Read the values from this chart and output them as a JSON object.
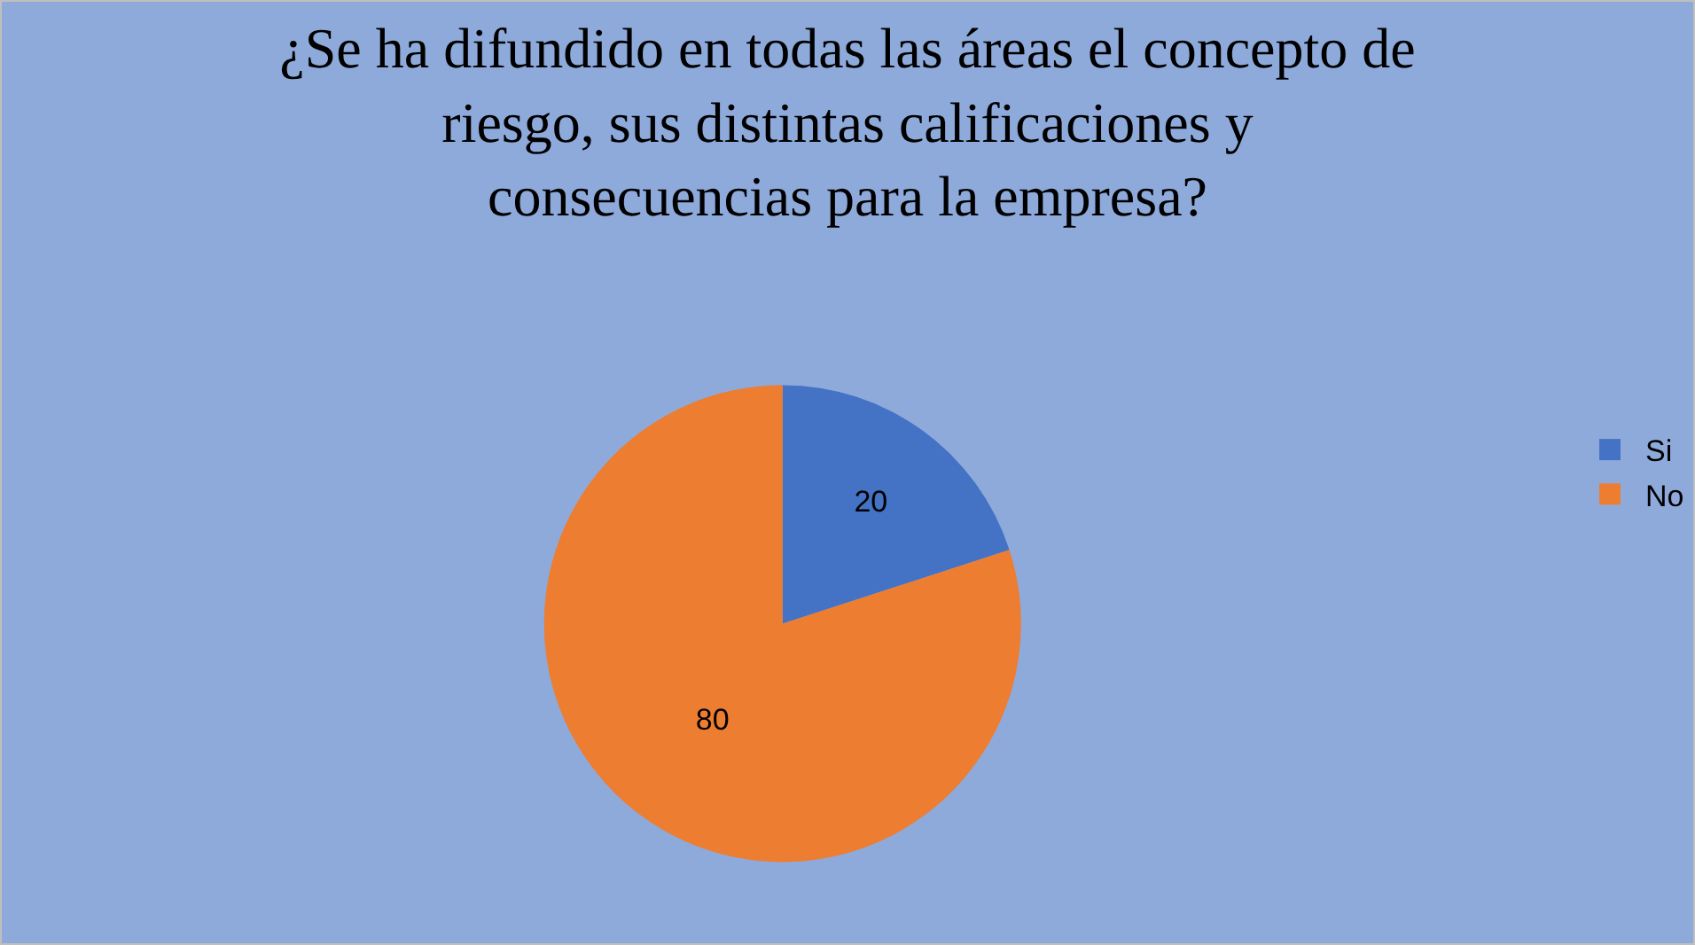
{
  "chart_data": {
    "type": "pie",
    "title": "¿Se ha difundido en todas las áreas el concepto de riesgo, sus distintas calificaciones y consecuencias para la empresa?",
    "categories": [
      "Si",
      "No"
    ],
    "values": [
      20,
      80
    ],
    "colors": [
      "#4472c4",
      "#ed7d31"
    ],
    "data_labels": true,
    "legend": "right"
  }
}
